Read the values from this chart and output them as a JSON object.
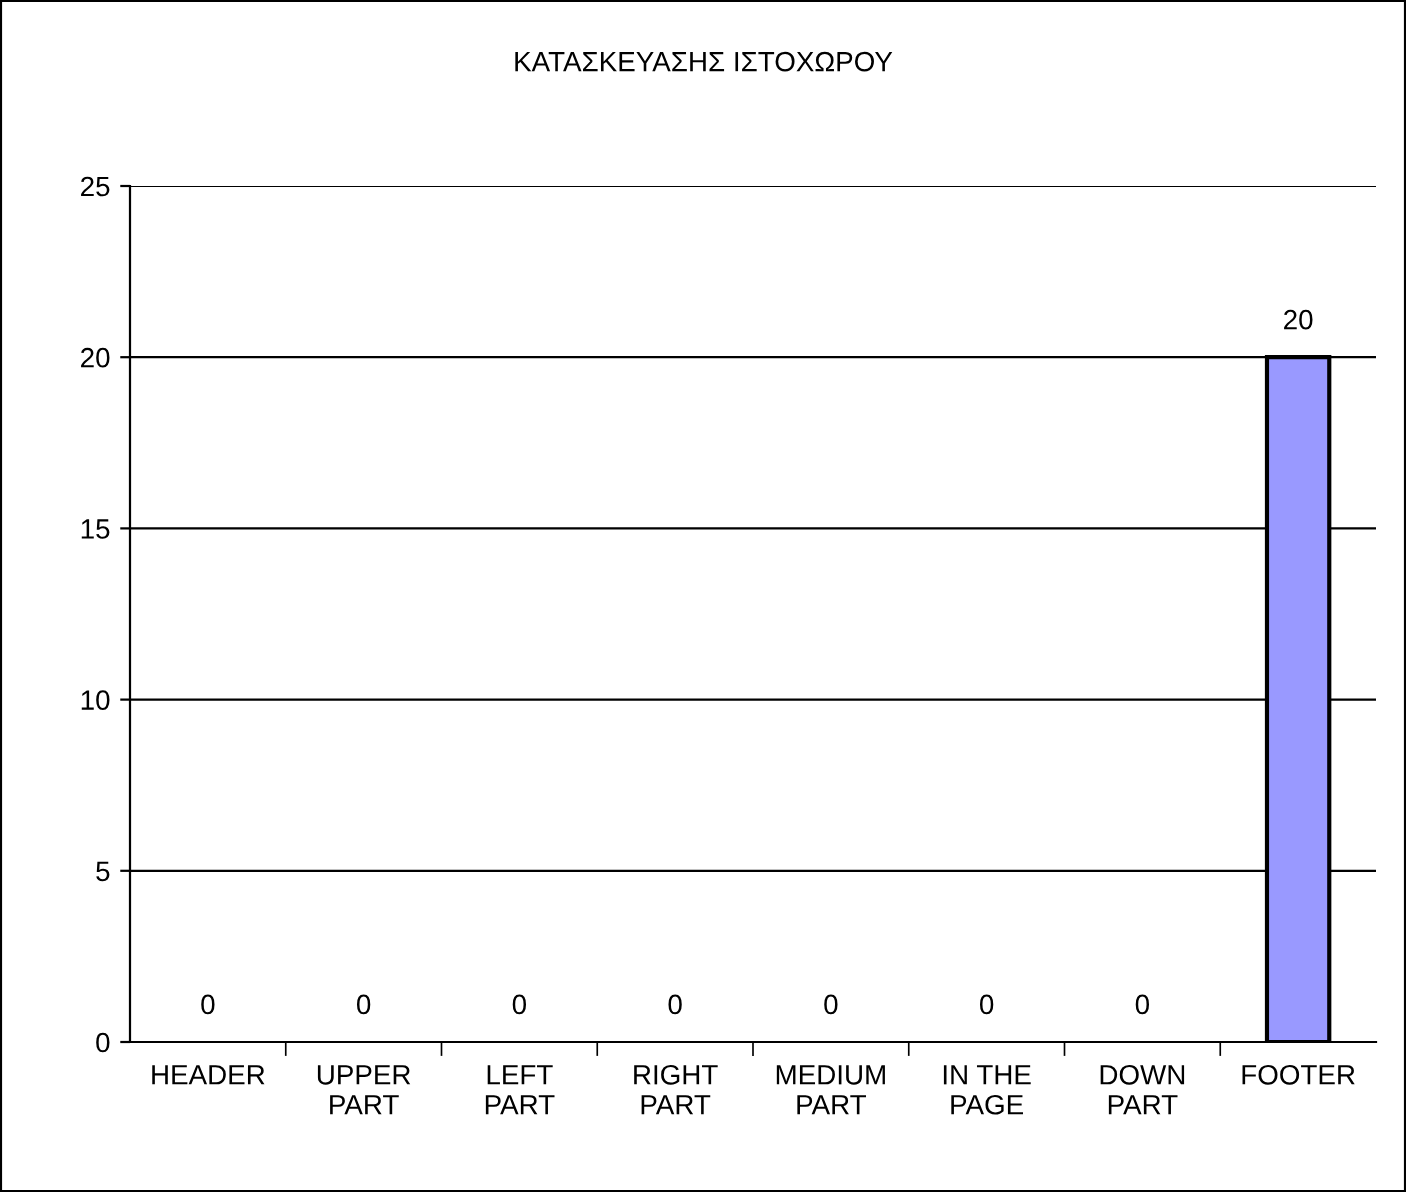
{
  "chart_data": {
    "type": "bar",
    "title": "ΚΑΤΑΣΚΕΥΑΣΗΣ ΙΣΤΟΧΩΡΟΥ",
    "categories": [
      "HEADER",
      "UPPER\nPART",
      "LEFT\nPART",
      "RIGHT\nPART",
      "MEDIUM\nPART",
      "IN THE\nPAGE",
      "DOWN\nPART",
      "FOOTER"
    ],
    "values": [
      0,
      0,
      0,
      0,
      0,
      0,
      0,
      20
    ],
    "color": "#9999ff",
    "ylim": [
      0,
      25
    ],
    "yticks": [
      0,
      5,
      10,
      15,
      20,
      25
    ],
    "grid": "y",
    "data_labels": true
  }
}
